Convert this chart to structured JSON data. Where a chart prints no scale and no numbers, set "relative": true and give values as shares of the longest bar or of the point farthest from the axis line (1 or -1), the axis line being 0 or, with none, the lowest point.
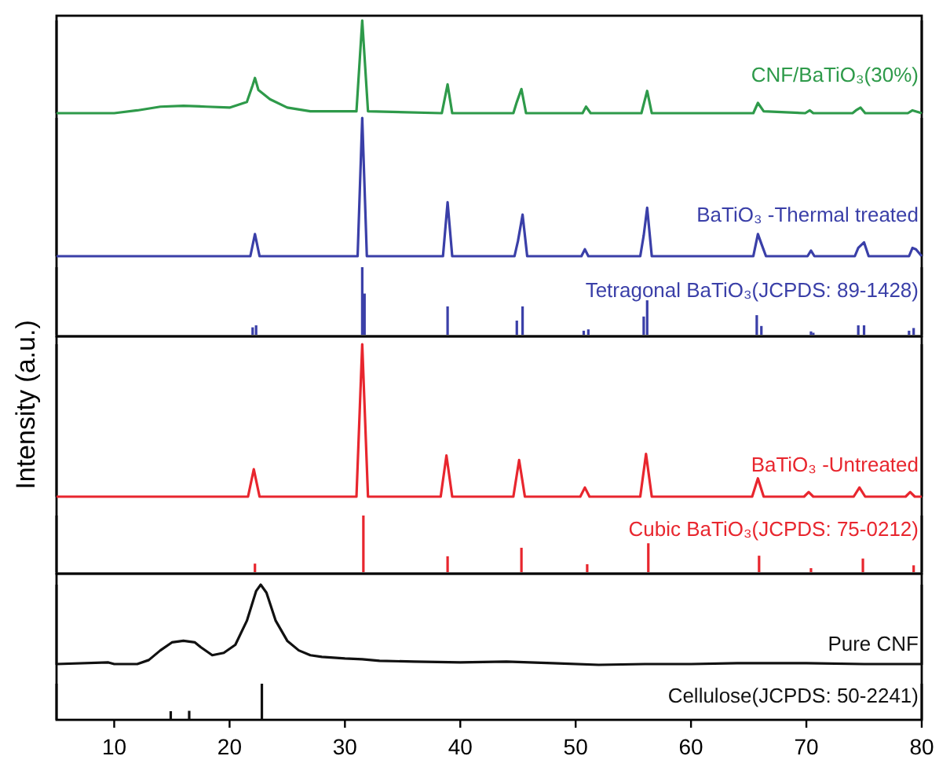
{
  "chart_data": [
    {
      "type": "line",
      "relative": true,
      "xlim": [
        5,
        80
      ],
      "tick_labels": false,
      "x": [
        5,
        10,
        12,
        14,
        16,
        18,
        20,
        21.5,
        22.0,
        22.2,
        22.5,
        23.5,
        25,
        27,
        31.0,
        31.5,
        32,
        38.4,
        38.9,
        39.3,
        44.6,
        44.9,
        45.3,
        45.7,
        50.6,
        50.9,
        51.3,
        55.7,
        56.2,
        56.6,
        65.4,
        65.8,
        66.3,
        69.9,
        70.3,
        70.6,
        74.0,
        74.3,
        74.7,
        75.1,
        78.8,
        79.2,
        80
      ],
      "series": [
        {
          "name": "CNF/BaTiO₃(30%)",
          "color": "#2e9a4a",
          "values": [
            0,
            0,
            0.03,
            0.07,
            0.08,
            0.07,
            0.06,
            0.12,
            0.3,
            0.38,
            0.25,
            0.15,
            0.06,
            0.02,
            0.02,
            1,
            0.02,
            0,
            0.31,
            0,
            0,
            0.12,
            0.26,
            0,
            0,
            0.07,
            0,
            0,
            0.24,
            0,
            0,
            0.11,
            0.02,
            0,
            0.03,
            0,
            0,
            0.03,
            0.06,
            0,
            0,
            0.03,
            0
          ]
        }
      ]
    },
    {
      "type": "line",
      "relative": true,
      "xlim": [
        5,
        80
      ],
      "tick_labels": false,
      "x": [
        5,
        21.8,
        22.2,
        22.6,
        31.1,
        31.5,
        31.9,
        38.5,
        38.9,
        39.3,
        44.7,
        45.0,
        45.4,
        45.8,
        50.5,
        50.8,
        51.1,
        55.6,
        55.9,
        56.2,
        56.6,
        65.4,
        65.8,
        66.1,
        66.5,
        70.1,
        70.4,
        70.7,
        74.2,
        74.5,
        75.0,
        75.4,
        78.9,
        79.2,
        79.5,
        80
      ],
      "series": [
        {
          "name": "BaTiO₃ -Thermal treated",
          "color": "#3a3fa8",
          "values": [
            0,
            0,
            0.16,
            0,
            0,
            1,
            0,
            0,
            0.39,
            0,
            0,
            0.11,
            0.3,
            0,
            0,
            0.05,
            0,
            0,
            0.15,
            0.35,
            0,
            0,
            0.16,
            0.09,
            0,
            0,
            0.04,
            0,
            0,
            0.06,
            0.1,
            0,
            0,
            0.06,
            0.05,
            0
          ]
        }
      ]
    },
    {
      "type": "bar",
      "relative": true,
      "xlim": [
        5,
        80
      ],
      "tick_labels": false,
      "x": [
        22.0,
        22.3,
        31.5,
        31.7,
        38.9,
        44.9,
        45.4,
        50.7,
        51.1,
        55.9,
        56.2,
        65.7,
        66.1,
        70.4,
        70.6,
        74.5,
        75.0,
        78.9,
        79.3
      ],
      "series": [
        {
          "name": "Tetragonal BaTiO₃(JCPDS: 89-1428)",
          "color": "#3a3fa8",
          "values": [
            0.11,
            0.14,
            1,
            0.61,
            0.42,
            0.21,
            0.42,
            0.06,
            0.08,
            0.27,
            0.51,
            0.29,
            0.13,
            0.05,
            0.03,
            0.14,
            0.14,
            0.06,
            0.1
          ]
        }
      ]
    },
    {
      "type": "line",
      "relative": true,
      "xlim": [
        5,
        80
      ],
      "tick_labels": false,
      "ylabel": "Intensity (a.u.)",
      "x": [
        5,
        21.6,
        22.1,
        22.6,
        31.0,
        31.5,
        32.0,
        38.3,
        38.8,
        39.3,
        44.6,
        45.1,
        45.6,
        50.4,
        50.8,
        51.2,
        55.6,
        56.1,
        56.6,
        65.3,
        65.8,
        66.3,
        69.8,
        70.2,
        70.6,
        74.1,
        74.6,
        75.1,
        78.6,
        79.0,
        79.4,
        80
      ],
      "series": [
        {
          "name": "BaTiO₃ -Untreated",
          "color": "#e8262e",
          "values": [
            0,
            0,
            0.18,
            0,
            0,
            1,
            0,
            0,
            0.27,
            0,
            0,
            0.24,
            0,
            0,
            0.06,
            0,
            0,
            0.28,
            0,
            0,
            0.12,
            0,
            0,
            0.03,
            0,
            0,
            0.06,
            0,
            0,
            0.03,
            0,
            0
          ]
        }
      ]
    },
    {
      "type": "bar",
      "relative": true,
      "xlim": [
        5,
        80
      ],
      "tick_labels": false,
      "x": [
        22.2,
        31.6,
        38.9,
        45.3,
        51.0,
        56.3,
        65.9,
        70.4,
        74.9,
        79.3
      ],
      "series": [
        {
          "name": "Cubic BaTiO₃(JCPDS: 75-0212)",
          "color": "#e8262e",
          "values": [
            0.15,
            1,
            0.28,
            0.43,
            0.14,
            0.51,
            0.29,
            0.07,
            0.24,
            0.12
          ]
        }
      ]
    },
    {
      "type": "line",
      "relative": true,
      "xlim": [
        5,
        80
      ],
      "tick_labels": false,
      "x": [
        5,
        9.5,
        10,
        12,
        13,
        14,
        15,
        16,
        17,
        17.5,
        18.5,
        19.5,
        20.5,
        21.5,
        22.3,
        22.7,
        23.2,
        24,
        25,
        26,
        27,
        28,
        30,
        31.5,
        33,
        36,
        40,
        44,
        48,
        52,
        56,
        60,
        64,
        70,
        75,
        80
      ],
      "series": [
        {
          "name": "Pure CNF",
          "color": "#111111",
          "values": [
            0.01,
            0.03,
            0.01,
            0.01,
            0.06,
            0.18,
            0.28,
            0.3,
            0.28,
            0.22,
            0.12,
            0.15,
            0.25,
            0.55,
            0.92,
            1,
            0.9,
            0.55,
            0.3,
            0.18,
            0.12,
            0.1,
            0.08,
            0.07,
            0.05,
            0.04,
            0.03,
            0.04,
            0.02,
            0,
            0.01,
            0.01,
            0.02,
            0.02,
            0.01,
            0.01
          ]
        }
      ]
    },
    {
      "type": "bar",
      "relative": true,
      "xlim": [
        5,
        80
      ],
      "xticks": [
        10,
        20,
        30,
        40,
        50,
        60,
        70,
        80
      ],
      "tick_labels": "x",
      "x": [
        14.9,
        16.5,
        22.8
      ],
      "series": [
        {
          "name": "Cellulose(JCPDS: 50-2241)",
          "color": "#111111",
          "values": [
            0.24,
            0.25,
            1
          ]
        }
      ]
    }
  ]
}
